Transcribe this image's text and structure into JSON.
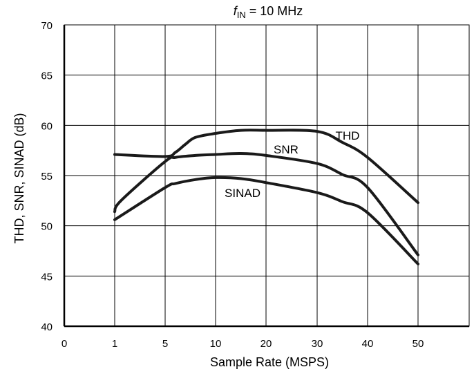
{
  "chart_data": {
    "type": "line",
    "title_var": "f",
    "title_sub": "IN",
    "title_rest": " = 10 MHz",
    "xlabel": "Sample Rate (MSPS)",
    "ylabel": "THD, SNR, SINAD (dB)",
    "ylim": [
      40,
      70
    ],
    "yticks": [
      "40",
      "45",
      "50",
      "55",
      "60",
      "65",
      "70"
    ],
    "xticks": [
      "0",
      "1",
      "5",
      "10",
      "20",
      "30",
      "40",
      "50"
    ],
    "grid": true,
    "series": [
      {
        "name": "THD",
        "x": [
          "1",
          "5",
          "6",
          "7",
          "8",
          "10",
          "15",
          "20",
          "30",
          "35",
          "40",
          "50"
        ],
        "y": [
          57.1,
          56.9,
          57.3,
          58.1,
          58.8,
          59.2,
          59.5,
          59.5,
          59.4,
          58.3,
          56.8,
          52.3
        ]
      },
      {
        "name": "SNR",
        "x": [
          "1",
          "1.5",
          "5",
          "6",
          "8",
          "10",
          "15",
          "20",
          "30",
          "35",
          "40",
          "50"
        ],
        "y": [
          51.4,
          52.5,
          56.4,
          56.8,
          57.0,
          57.1,
          57.2,
          57.0,
          56.2,
          55.1,
          53.8,
          47.1
        ]
      },
      {
        "name": "SINAD",
        "x": [
          "1",
          "5",
          "6",
          "8",
          "10",
          "15",
          "20",
          "30",
          "35",
          "40",
          "50"
        ],
        "y": [
          50.6,
          53.8,
          54.2,
          54.6,
          54.8,
          54.7,
          54.3,
          53.3,
          52.4,
          51.3,
          46.2
        ]
      }
    ]
  }
}
